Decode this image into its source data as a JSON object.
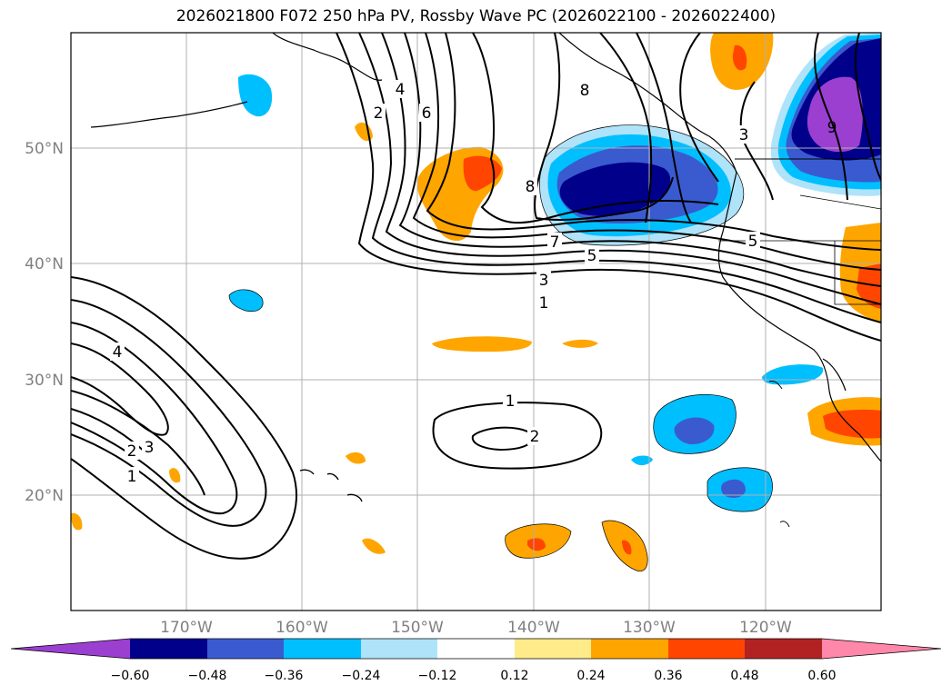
{
  "title": "2026021800 F072 250 hPa PV, Rossby Wave PC (2026022100 - 2026022400)",
  "latitude_labels": [
    "50°N",
    "40°N",
    "30°N",
    "20°N"
  ],
  "longitude_labels": [
    "170°W",
    "160°W",
    "150°W",
    "140°W",
    "130°W",
    "120°W"
  ],
  "colorbar": {
    "tick_labels": [
      "−0.60",
      "−0.48",
      "−0.36",
      "−0.24",
      "−0.12",
      "0.12",
      "0.24",
      "0.36",
      "0.48",
      "0.60"
    ],
    "colors": [
      "#9b3fd1",
      "#00008b",
      "#3a5bd0",
      "#00bfff",
      "#aee3fa",
      "#ffffff",
      "#ffeb8a",
      "#ffa500",
      "#ff4500",
      "#b22222",
      "#ff88aa"
    ]
  },
  "pv_contour_labels": [
    "4",
    "2",
    "6",
    "8",
    "3",
    "9",
    "8",
    "7",
    "5",
    "5",
    "3",
    "1",
    "4",
    "2",
    "3",
    "1",
    "1",
    "2"
  ],
  "colors": {
    "land_outline": "#000000",
    "grid": "#b0b0b0",
    "contour": "#000000"
  }
}
